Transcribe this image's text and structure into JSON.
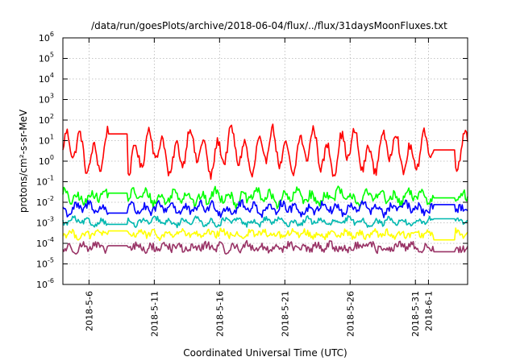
{
  "chart_data": {
    "type": "line",
    "title": "/data/run/goesPlots/archive/2018-06-04/flux/../flux/31daysMoonFluxes.txt",
    "xlabel": "Coordinated Universal Time (UTC)",
    "ylabel": "protons/cm²-s-sr-MeV",
    "yscale": "log",
    "ylim": [
      1e-06,
      1000000.0
    ],
    "xlim": [
      "2018-05-04",
      "2018-06-04"
    ],
    "grid": true,
    "y_ticks": [
      {
        "base": "10",
        "exp": "-6",
        "value": 1e-06
      },
      {
        "base": "10",
        "exp": "-5",
        "value": 1e-05
      },
      {
        "base": "10",
        "exp": "-4",
        "value": 0.0001
      },
      {
        "base": "10",
        "exp": "-3",
        "value": 0.001
      },
      {
        "base": "10",
        "exp": "-2",
        "value": 0.01
      },
      {
        "base": "10",
        "exp": "-1",
        "value": 0.1
      },
      {
        "base": "10",
        "exp": "0",
        "value": 1
      },
      {
        "base": "10",
        "exp": "1",
        "value": 10
      },
      {
        "base": "10",
        "exp": "2",
        "value": 100
      },
      {
        "base": "10",
        "exp": "3",
        "value": 1000
      },
      {
        "base": "10",
        "exp": "4",
        "value": 10000
      },
      {
        "base": "10",
        "exp": "5",
        "value": 100000
      },
      {
        "base": "10",
        "exp": "6",
        "value": 1000000
      }
    ],
    "x_ticks": [
      {
        "label": "2018-5-6",
        "date": "2018-05-06"
      },
      {
        "label": "2018-5-11",
        "date": "2018-05-11"
      },
      {
        "label": "2018-5-16",
        "date": "2018-05-16"
      },
      {
        "label": "2018-5-21",
        "date": "2018-05-21"
      },
      {
        "label": "2018-5-26",
        "date": "2018-05-26"
      },
      {
        "label": "2018-5-31",
        "date": "2018-05-31"
      },
      {
        "label": "2018-6-1",
        "date": "2018-06-01"
      }
    ],
    "series": [
      {
        "color": "#ff0000",
        "log_mean": 0.45,
        "amp": 0.75,
        "noise": 0.22,
        "gaps": [
          [
            "2018-05-07T13:00",
            "2018-05-08T22:00"
          ],
          [
            "2018-06-01T12:00",
            "2018-06-03T00:00"
          ]
        ]
      },
      {
        "color": "#00ff00",
        "log_mean": -1.75,
        "amp": 0.22,
        "noise": 0.22,
        "gaps": [
          [
            "2018-05-07T13:00",
            "2018-05-08T22:00"
          ],
          [
            "2018-06-01T12:00",
            "2018-06-03T00:00"
          ]
        ]
      },
      {
        "color": "#0000ff",
        "log_mean": -2.3,
        "amp": 0.18,
        "noise": 0.2,
        "gaps": [
          [
            "2018-05-07T13:00",
            "2018-05-08T22:00"
          ],
          [
            "2018-06-01T12:00",
            "2018-06-03T00:00"
          ]
        ]
      },
      {
        "color": "#00b8b0",
        "log_mean": -2.95,
        "amp": 0.12,
        "noise": 0.12,
        "gaps": [
          [
            "2018-05-07T13:00",
            "2018-05-08T22:00"
          ],
          [
            "2018-06-01T12:00",
            "2018-06-03T00:00"
          ]
        ]
      },
      {
        "color": "#ffff00",
        "log_mean": -3.55,
        "amp": 0.1,
        "noise": 0.16,
        "gaps": [
          [
            "2018-05-07T13:00",
            "2018-05-08T22:00"
          ],
          [
            "2018-06-01T12:00",
            "2018-06-03T00:00"
          ]
        ]
      },
      {
        "color": "#993366",
        "log_mean": -4.2,
        "amp": 0.1,
        "noise": 0.2,
        "gaps": [
          [
            "2018-05-07T13:00",
            "2018-05-08T22:00"
          ],
          [
            "2018-06-01T12:00",
            "2018-06-03T00:00"
          ]
        ]
      }
    ]
  }
}
